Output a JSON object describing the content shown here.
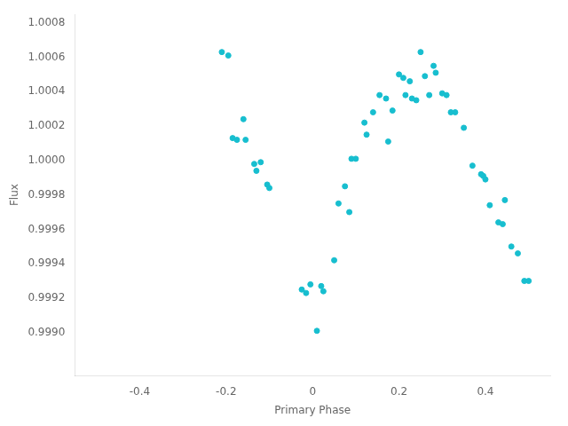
{
  "chart_data": {
    "type": "scatter",
    "x": [
      -0.21,
      -0.195,
      -0.185,
      -0.175,
      -0.16,
      -0.155,
      -0.135,
      -0.13,
      -0.12,
      -0.105,
      -0.1,
      -0.025,
      -0.015,
      -0.005,
      0.01,
      0.02,
      0.025,
      0.05,
      0.06,
      0.075,
      0.085,
      0.09,
      0.1,
      0.12,
      0.125,
      0.14,
      0.155,
      0.17,
      0.175,
      0.185,
      0.2,
      0.21,
      0.215,
      0.225,
      0.23,
      0.24,
      0.25,
      0.26,
      0.27,
      0.28,
      0.285,
      0.3,
      0.31,
      0.32,
      0.33,
      0.35,
      0.37,
      0.39,
      0.395,
      0.4,
      0.41,
      0.43,
      0.44,
      0.445,
      0.46,
      0.475,
      0.49,
      0.5
    ],
    "values": [
      1.00063,
      1.00061,
      1.00013,
      1.00012,
      1.00024,
      1.00012,
      0.99998,
      0.99994,
      0.99999,
      0.99986,
      0.99984,
      0.99925,
      0.99923,
      0.99928,
      0.99901,
      0.99927,
      0.99924,
      0.99942,
      0.99975,
      0.99985,
      0.9997,
      1.00001,
      1.00001,
      1.00022,
      1.00015,
      1.00028,
      1.00038,
      1.00036,
      1.00011,
      1.00029,
      1.0005,
      1.00048,
      1.00038,
      1.00046,
      1.00036,
      1.00035,
      1.00063,
      1.00049,
      1.00038,
      1.00055,
      1.00051,
      1.00039,
      1.00038,
      1.00028,
      1.00028,
      1.00019,
      0.99997,
      0.99992,
      0.99991,
      0.99989,
      0.99974,
      0.99964,
      0.99963,
      0.99977,
      0.9995,
      0.99946,
      0.9993,
      0.9993
    ],
    "color": "#17becf",
    "xlabel": "Primary Phase",
    "ylabel": "Flux",
    "xlim": [
      -0.55,
      0.55
    ],
    "ylim": [
      0.99875,
      1.00085
    ],
    "xticks": [
      -0.4,
      -0.2,
      0,
      0.2,
      0.4
    ],
    "yticks": [
      {
        "value": 0.999,
        "label": "0.9990"
      },
      {
        "value": 0.9992,
        "label": "0.9992"
      },
      {
        "value": 0.9994,
        "label": "0.9994"
      },
      {
        "value": 0.9996,
        "label": "0.9996"
      },
      {
        "value": 0.9998,
        "label": "0.9998"
      },
      {
        "value": 1.0,
        "label": "1.0000"
      },
      {
        "value": 1.0002,
        "label": "1.0002"
      },
      {
        "value": 1.0004,
        "label": "1.0004"
      },
      {
        "value": 1.0006,
        "label": "1.0006"
      },
      {
        "value": 1.0008,
        "label": "1.0008"
      }
    ],
    "grid": false
  }
}
